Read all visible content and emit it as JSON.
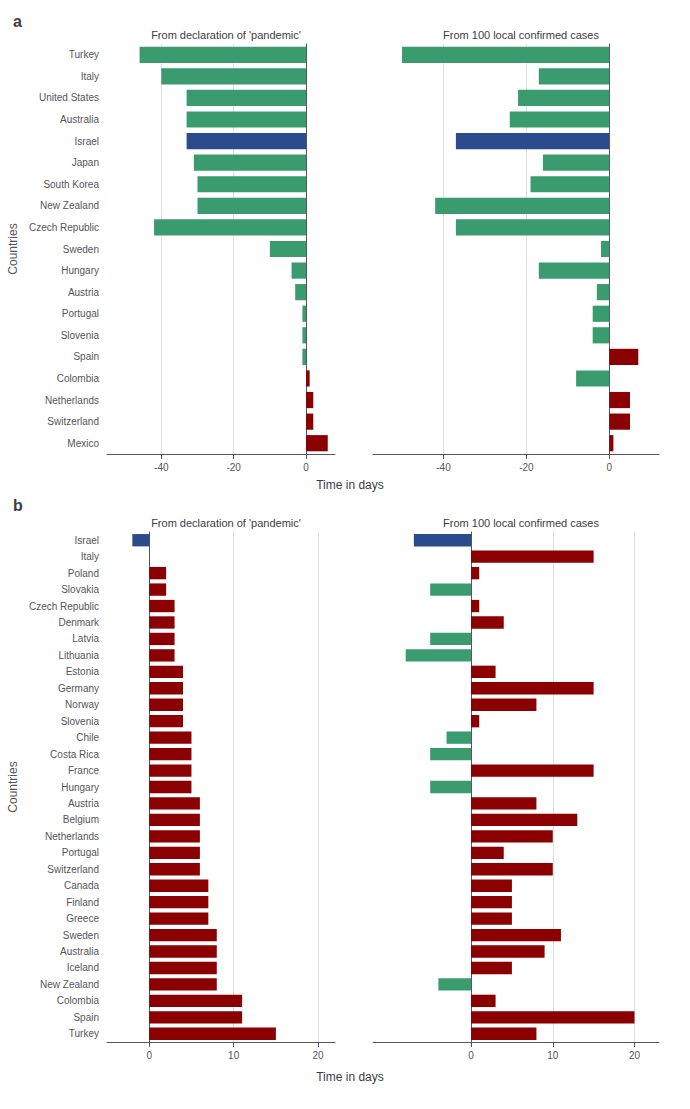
{
  "chart_data": [
    {
      "type": "bar",
      "orientation": "horizontal",
      "title": "From declaration of 'pandemic'",
      "ylabel": "Countries",
      "xlabel": "Time in days",
      "annotations": [
        "a"
      ],
      "categories": [
        "Turkey",
        "Italy",
        "United States",
        "Australia",
        "Israel",
        "Japan",
        "South Korea",
        "New Zealand",
        "Czech Republic",
        "Sweden",
        "Hungary",
        "Austria",
        "Portugal",
        "Slovenia",
        "Spain",
        "Colombia",
        "Netherlands",
        "Switzerland",
        "Mexico"
      ],
      "values": [
        -46,
        -40,
        -33,
        -33,
        -33,
        -31,
        -30,
        -30,
        -42,
        -10,
        -4,
        -3,
        -1,
        -1,
        -1,
        1,
        2,
        2,
        6
      ],
      "colors": [
        "#3A9B6F",
        "#3A9B6F",
        "#3A9B6F",
        "#3A9B6F",
        "#2B4B8C",
        "#3A9B6F",
        "#3A9B6F",
        "#3A9B6F",
        "#3A9B6F",
        "#3A9B6F",
        "#3A9B6F",
        "#3A9B6F",
        "#3A9B6F",
        "#3A9B6F",
        "#3A9B6F",
        "#8B0000",
        "#8B0000",
        "#8B0000",
        "#8B0000"
      ],
      "xlim": [
        -55,
        8
      ],
      "xticks": [
        -40,
        -20,
        0
      ],
      "grid": true
    },
    {
      "type": "bar",
      "orientation": "horizontal",
      "title": "From 100 local confirmed cases",
      "tick_labels": "x",
      "categories": [
        "Turkey",
        "Italy",
        "United States",
        "Australia",
        "Israel",
        "Japan",
        "South Korea",
        "New Zealand",
        "Czech Republic",
        "Sweden",
        "Hungary",
        "Austria",
        "Portugal",
        "Slovenia",
        "Spain",
        "Colombia",
        "Netherlands",
        "Switzerland",
        "Mexico"
      ],
      "values": [
        -50,
        -17,
        -22,
        -24,
        -37,
        -16,
        -19,
        -42,
        -37,
        -2,
        -17,
        -3,
        -4,
        -4,
        7,
        -8,
        5,
        5,
        1
      ],
      "colors": [
        "#3A9B6F",
        "#3A9B6F",
        "#3A9B6F",
        "#3A9B6F",
        "#2B4B8C",
        "#3A9B6F",
        "#3A9B6F",
        "#3A9B6F",
        "#3A9B6F",
        "#3A9B6F",
        "#3A9B6F",
        "#3A9B6F",
        "#3A9B6F",
        "#3A9B6F",
        "#8B0000",
        "#3A9B6F",
        "#8B0000",
        "#8B0000",
        "#8B0000"
      ],
      "xlim": [
        -57,
        12
      ],
      "xticks": [
        -40,
        -20,
        0
      ],
      "grid": true
    },
    {
      "type": "bar",
      "orientation": "horizontal",
      "title": "From declaration of 'pandemic'",
      "ylabel": "Countries",
      "xlabel": "Time in days",
      "annotations": [
        "b"
      ],
      "categories": [
        "Israel",
        "Italy",
        "Poland",
        "Slovakia",
        "Czech Republic",
        "Denmark",
        "Latvia",
        "Lithuania",
        "Estonia",
        "Germany",
        "Norway",
        "Slovenia",
        "Chile",
        "Costa Rica",
        "France",
        "Hungary",
        "Austria",
        "Belgium",
        "Netherlands",
        "Portugal",
        "Switzerland",
        "Canada",
        "Finland",
        "Greece",
        "Sweden",
        "Australia",
        "Iceland",
        "New Zealand",
        "Colombia",
        "Spain",
        "Turkey"
      ],
      "values": [
        -2,
        0,
        2,
        2,
        3,
        3,
        3,
        3,
        4,
        4,
        4,
        4,
        5,
        5,
        5,
        5,
        6,
        6,
        6,
        6,
        6,
        7,
        7,
        7,
        8,
        8,
        8,
        8,
        11,
        11,
        15
      ],
      "colors": [
        "#2B4B8C",
        "#3A9B6F",
        "#8B0000",
        "#8B0000",
        "#8B0000",
        "#8B0000",
        "#8B0000",
        "#8B0000",
        "#8B0000",
        "#8B0000",
        "#8B0000",
        "#8B0000",
        "#8B0000",
        "#8B0000",
        "#8B0000",
        "#8B0000",
        "#8B0000",
        "#8B0000",
        "#8B0000",
        "#8B0000",
        "#8B0000",
        "#8B0000",
        "#8B0000",
        "#8B0000",
        "#8B0000",
        "#8B0000",
        "#8B0000",
        "#8B0000",
        "#8B0000",
        "#8B0000",
        "#8B0000"
      ],
      "xlim": [
        -5,
        22
      ],
      "xticks": [
        0,
        10,
        20
      ],
      "grid": true
    },
    {
      "type": "bar",
      "orientation": "horizontal",
      "title": "From 100 local confirmed cases",
      "tick_labels": "x",
      "categories": [
        "Israel",
        "Italy",
        "Poland",
        "Slovakia",
        "Czech Republic",
        "Denmark",
        "Latvia",
        "Lithuania",
        "Estonia",
        "Germany",
        "Norway",
        "Slovenia",
        "Chile",
        "Costa Rica",
        "France",
        "Hungary",
        "Austria",
        "Belgium",
        "Netherlands",
        "Portugal",
        "Switzerland",
        "Canada",
        "Finland",
        "Greece",
        "Sweden",
        "Australia",
        "Iceland",
        "New Zealand",
        "Colombia",
        "Spain",
        "Turkey"
      ],
      "values": [
        -7,
        15,
        1,
        -5,
        1,
        4,
        -5,
        -8,
        3,
        15,
        8,
        1,
        -3,
        -5,
        15,
        -5,
        8,
        13,
        10,
        4,
        10,
        5,
        5,
        5,
        11,
        9,
        5,
        -4,
        3,
        20,
        8
      ],
      "colors": [
        "#2B4B8C",
        "#8B0000",
        "#8B0000",
        "#3A9B6F",
        "#8B0000",
        "#8B0000",
        "#3A9B6F",
        "#3A9B6F",
        "#8B0000",
        "#8B0000",
        "#8B0000",
        "#8B0000",
        "#3A9B6F",
        "#3A9B6F",
        "#8B0000",
        "#3A9B6F",
        "#8B0000",
        "#8B0000",
        "#8B0000",
        "#8B0000",
        "#8B0000",
        "#8B0000",
        "#8B0000",
        "#8B0000",
        "#8B0000",
        "#8B0000",
        "#8B0000",
        "#3A9B6F",
        "#8B0000",
        "#8B0000",
        "#8B0000"
      ],
      "xlim": [
        -12,
        23
      ],
      "xticks": [
        0,
        10,
        20
      ],
      "grid": true
    }
  ]
}
